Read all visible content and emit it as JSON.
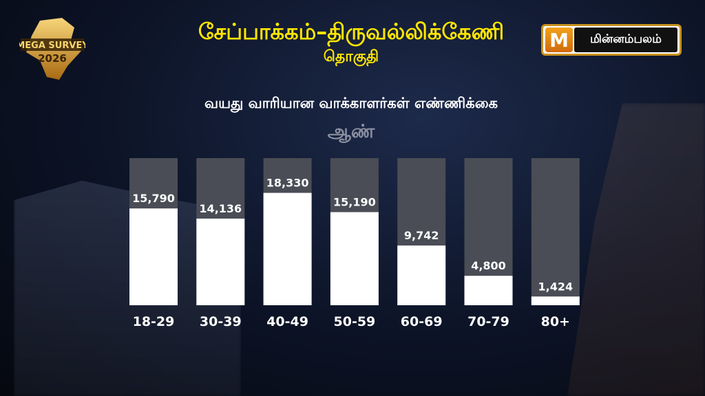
{
  "header": {
    "title": "சேப்பாக்கம்–திருவல்லிக்கேணி",
    "subtitle": "தொகுதி",
    "badge_line1": "MEGA SURVEY",
    "badge_line2": "2026",
    "brand_mark": "M",
    "brand_name": "மின்னம்பலம்"
  },
  "colors": {
    "title": "#ffe600",
    "bar_fill": "#ffffff",
    "bar_track": "#4a4d55",
    "label": "#ffffff"
  },
  "chart_data": {
    "type": "bar",
    "title": "வயது வாரியான வாக்காளர்கள் எண்ணிக்கை",
    "subtitle": "ஆண்",
    "categories": [
      "18-29",
      "30-39",
      "40-49",
      "50-59",
      "60-69",
      "70-79",
      "80+"
    ],
    "values": [
      15790,
      14136,
      18330,
      15190,
      9742,
      4800,
      1424
    ],
    "value_labels": [
      "15,790",
      "14,136",
      "18,330",
      "15,190",
      "9,742",
      "4,800",
      "1,424"
    ],
    "ylim": [
      0,
      24000
    ],
    "xlabel": "",
    "ylabel": "",
    "grid": false,
    "legend": "none"
  }
}
